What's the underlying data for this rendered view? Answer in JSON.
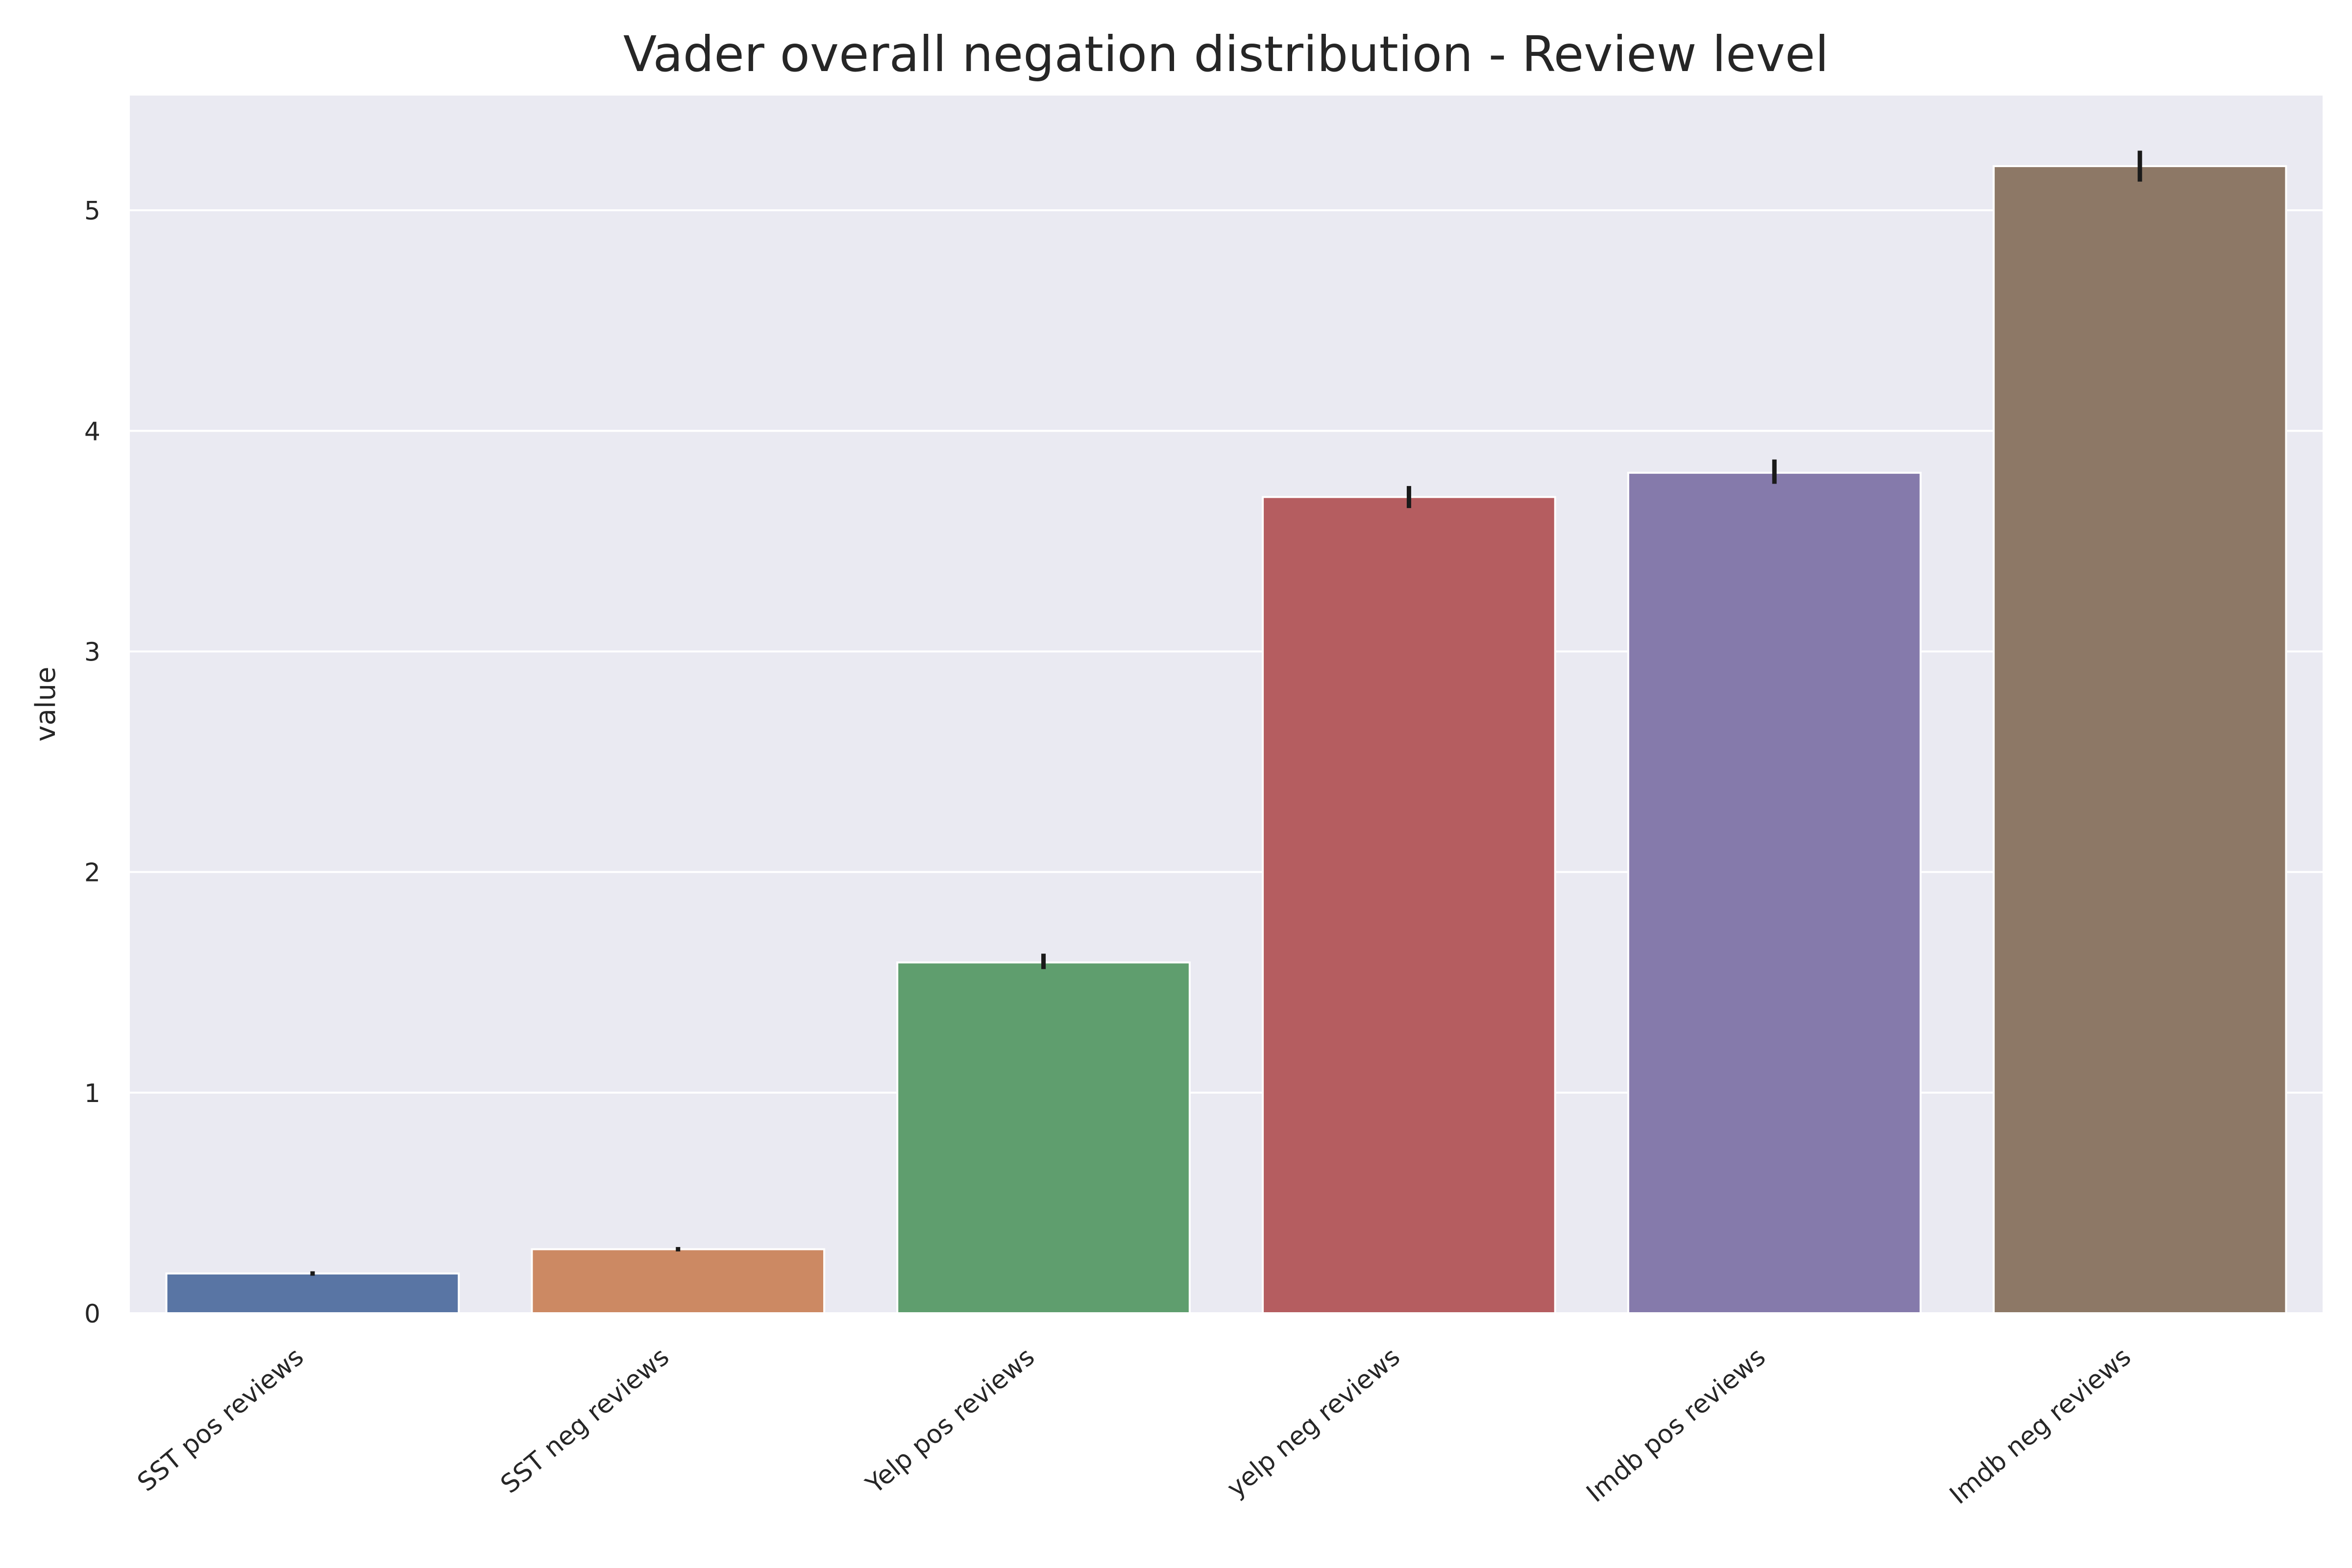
{
  "chart_data": {
    "type": "bar",
    "title": "Vader overall negation distribution - Review level",
    "xlabel": "",
    "ylabel": "value",
    "ylim": [
      0,
      5.52
    ],
    "yticks": [
      0,
      1,
      2,
      3,
      4,
      5
    ],
    "grid": true,
    "categories": [
      "SST pos reviews",
      "SST neg reviews",
      "Yelp pos reviews",
      "yelp neg reviews",
      "Imdb pos reviews",
      "Imdb neg reviews"
    ],
    "values": [
      0.18,
      0.29,
      1.59,
      3.7,
      3.81,
      5.2
    ],
    "error_bars": [
      [
        0.17,
        0.19
      ],
      [
        0.28,
        0.3
      ],
      [
        1.56,
        1.63
      ],
      [
        3.65,
        3.75
      ],
      [
        3.76,
        3.87
      ],
      [
        5.13,
        5.27
      ]
    ],
    "colors": [
      "#5975a4",
      "#cc8963",
      "#5f9e6e",
      "#b55d60",
      "#857aab",
      "#8d7866"
    ],
    "background_color": "#eaeaf2",
    "grid_color": "#ffffff",
    "errorbar_color": "#1a1a1a"
  }
}
